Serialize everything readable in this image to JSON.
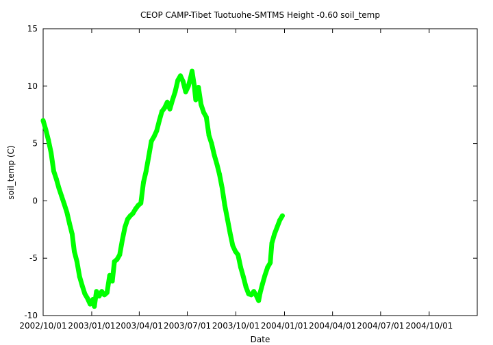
{
  "chart_data": {
    "type": "line",
    "title": "CEOP CAMP-Tibet Tuotuohe-SMTMS Height -0.60 soil_temp",
    "xlabel": "Date",
    "ylabel": "soil_temp (C)",
    "xlim": [
      "2002-10-01",
      "2004-12-31"
    ],
    "ylim": [
      -10,
      15
    ],
    "x_ticks": [
      {
        "date": "2002-10-01",
        "label": "2002/10/01"
      },
      {
        "date": "2003-01-01",
        "label": "2003/01/01"
      },
      {
        "date": "2003-04-01",
        "label": "2003/04/01"
      },
      {
        "date": "2003-07-01",
        "label": "2003/07/01"
      },
      {
        "date": "2003-10-01",
        "label": "2003/10/01"
      },
      {
        "date": "2004-01-01",
        "label": "2004/01/01"
      },
      {
        "date": "2004-04-01",
        "label": "2004/04/01"
      },
      {
        "date": "2004-07-01",
        "label": "2004/07/01"
      },
      {
        "date": "2004-10-01",
        "label": "2004/10/01"
      }
    ],
    "y_ticks": [
      {
        "value": 15,
        "label": "15"
      },
      {
        "value": 10,
        "label": "10"
      },
      {
        "value": 5,
        "label": "5"
      },
      {
        "value": 0,
        "label": "0"
      },
      {
        "value": -5,
        "label": "-5"
      },
      {
        "value": -10,
        "label": "-10"
      }
    ],
    "grid": false,
    "legend": "none",
    "series": [
      {
        "color": "#00ff00",
        "points": [
          {
            "x": "2002-10-01",
            "y": 7.0
          },
          {
            "x": "2002-10-06",
            "y": 6.2
          },
          {
            "x": "2002-10-11",
            "y": 5.3
          },
          {
            "x": "2002-10-16",
            "y": 4.2
          },
          {
            "x": "2002-10-21",
            "y": 2.6
          },
          {
            "x": "2002-10-26",
            "y": 1.9
          },
          {
            "x": "2002-10-31",
            "y": 1.1
          },
          {
            "x": "2002-11-05",
            "y": 0.4
          },
          {
            "x": "2002-11-10",
            "y": -0.3
          },
          {
            "x": "2002-11-15",
            "y": -1.0
          },
          {
            "x": "2002-11-20",
            "y": -2.0
          },
          {
            "x": "2002-11-25",
            "y": -2.9
          },
          {
            "x": "2002-11-29",
            "y": -4.4
          },
          {
            "x": "2002-12-04",
            "y": -5.3
          },
          {
            "x": "2002-12-09",
            "y": -6.6
          },
          {
            "x": "2002-12-14",
            "y": -7.4
          },
          {
            "x": "2002-12-19",
            "y": -8.1
          },
          {
            "x": "2002-12-24",
            "y": -8.5
          },
          {
            "x": "2002-12-29",
            "y": -9.0
          },
          {
            "x": "2003-01-03",
            "y": -8.6
          },
          {
            "x": "2003-01-06",
            "y": -9.2
          },
          {
            "x": "2003-01-10",
            "y": -7.9
          },
          {
            "x": "2003-01-15",
            "y": -8.3
          },
          {
            "x": "2003-01-20",
            "y": -7.9
          },
          {
            "x": "2003-01-25",
            "y": -8.2
          },
          {
            "x": "2003-01-30",
            "y": -8.0
          },
          {
            "x": "2003-02-04",
            "y": -6.5
          },
          {
            "x": "2003-02-09",
            "y": -7.0
          },
          {
            "x": "2003-02-13",
            "y": -5.3
          },
          {
            "x": "2003-02-18",
            "y": -5.1
          },
          {
            "x": "2003-02-23",
            "y": -4.7
          },
          {
            "x": "2003-02-28",
            "y": -3.4
          },
          {
            "x": "2003-03-05",
            "y": -2.3
          },
          {
            "x": "2003-03-10",
            "y": -1.6
          },
          {
            "x": "2003-03-15",
            "y": -1.3
          },
          {
            "x": "2003-03-20",
            "y": -1.1
          },
          {
            "x": "2003-03-25",
            "y": -0.7
          },
          {
            "x": "2003-03-30",
            "y": -0.4
          },
          {
            "x": "2003-04-04",
            "y": -0.2
          },
          {
            "x": "2003-04-09",
            "y": 1.6
          },
          {
            "x": "2003-04-14",
            "y": 2.6
          },
          {
            "x": "2003-04-19",
            "y": 3.9
          },
          {
            "x": "2003-04-24",
            "y": 5.2
          },
          {
            "x": "2003-04-29",
            "y": 5.6
          },
          {
            "x": "2003-05-04",
            "y": 6.1
          },
          {
            "x": "2003-05-09",
            "y": 7.0
          },
          {
            "x": "2003-05-14",
            "y": 7.8
          },
          {
            "x": "2003-05-19",
            "y": 8.1
          },
          {
            "x": "2003-05-24",
            "y": 8.6
          },
          {
            "x": "2003-05-29",
            "y": 8.0
          },
          {
            "x": "2003-06-03",
            "y": 8.8
          },
          {
            "x": "2003-06-08",
            "y": 9.5
          },
          {
            "x": "2003-06-13",
            "y": 10.5
          },
          {
            "x": "2003-06-18",
            "y": 10.9
          },
          {
            "x": "2003-06-23",
            "y": 10.4
          },
          {
            "x": "2003-06-28",
            "y": 9.5
          },
          {
            "x": "2003-07-03",
            "y": 10.0
          },
          {
            "x": "2003-07-07",
            "y": 10.7
          },
          {
            "x": "2003-07-10",
            "y": 11.3
          },
          {
            "x": "2003-07-14",
            "y": 10.1
          },
          {
            "x": "2003-07-17",
            "y": 8.8
          },
          {
            "x": "2003-07-22",
            "y": 9.9
          },
          {
            "x": "2003-07-27",
            "y": 8.4
          },
          {
            "x": "2003-08-01",
            "y": 7.7
          },
          {
            "x": "2003-08-06",
            "y": 7.3
          },
          {
            "x": "2003-08-11",
            "y": 5.7
          },
          {
            "x": "2003-08-16",
            "y": 5.0
          },
          {
            "x": "2003-08-21",
            "y": 4.0
          },
          {
            "x": "2003-08-26",
            "y": 3.2
          },
          {
            "x": "2003-08-31",
            "y": 2.3
          },
          {
            "x": "2003-09-05",
            "y": 1.1
          },
          {
            "x": "2003-09-10",
            "y": -0.4
          },
          {
            "x": "2003-09-15",
            "y": -1.6
          },
          {
            "x": "2003-09-20",
            "y": -2.8
          },
          {
            "x": "2003-09-25",
            "y": -3.9
          },
          {
            "x": "2003-09-30",
            "y": -4.4
          },
          {
            "x": "2003-10-05",
            "y": -4.7
          },
          {
            "x": "2003-10-10",
            "y": -5.8
          },
          {
            "x": "2003-10-15",
            "y": -6.6
          },
          {
            "x": "2003-10-20",
            "y": -7.5
          },
          {
            "x": "2003-10-25",
            "y": -8.1
          },
          {
            "x": "2003-10-30",
            "y": -8.2
          },
          {
            "x": "2003-11-04",
            "y": -7.9
          },
          {
            "x": "2003-11-08",
            "y": -8.2
          },
          {
            "x": "2003-11-13",
            "y": -8.7
          },
          {
            "x": "2003-11-16",
            "y": -8.0
          },
          {
            "x": "2003-11-20",
            "y": -7.3
          },
          {
            "x": "2003-11-25",
            "y": -6.5
          },
          {
            "x": "2003-11-30",
            "y": -5.8
          },
          {
            "x": "2003-12-05",
            "y": -5.4
          },
          {
            "x": "2003-12-08",
            "y": -3.7
          },
          {
            "x": "2003-12-13",
            "y": -2.9
          },
          {
            "x": "2003-12-18",
            "y": -2.3
          },
          {
            "x": "2003-12-23",
            "y": -1.7
          },
          {
            "x": "2003-12-28",
            "y": -1.3
          }
        ]
      }
    ]
  }
}
